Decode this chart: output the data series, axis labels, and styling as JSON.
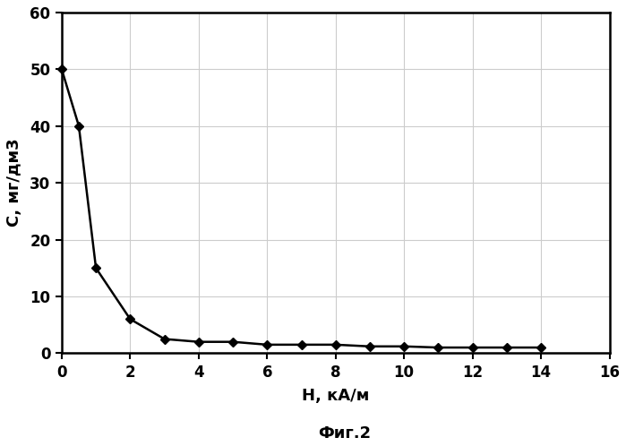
{
  "x": [
    0,
    0.5,
    1,
    2,
    3,
    4,
    5,
    6,
    7,
    8,
    9,
    10,
    11,
    12,
    13,
    14
  ],
  "y": [
    50,
    40,
    15,
    6,
    2.5,
    2,
    2,
    1.5,
    1.5,
    1.5,
    1.2,
    1.2,
    1.0,
    1.0,
    1.0,
    1.0
  ],
  "xlabel": "H, кА/м",
  "ylabel": "С, мг/дм3",
  "caption": "Фиг.2",
  "xlim": [
    0,
    16
  ],
  "ylim": [
    0,
    60
  ],
  "xticks": [
    0,
    2,
    4,
    6,
    8,
    10,
    12,
    14,
    16
  ],
  "yticks": [
    0,
    10,
    20,
    30,
    40,
    50,
    60
  ],
  "line_color": "#000000",
  "marker": "D",
  "marker_size": 5,
  "line_width": 1.8,
  "bg_color": "#ffffff",
  "grid_color": "#cccccc",
  "figsize": [
    6.99,
    4.98
  ],
  "dpi": 100,
  "tick_fontsize": 12,
  "label_fontsize": 13,
  "caption_fontsize": 13,
  "spine_linewidth": 1.8
}
